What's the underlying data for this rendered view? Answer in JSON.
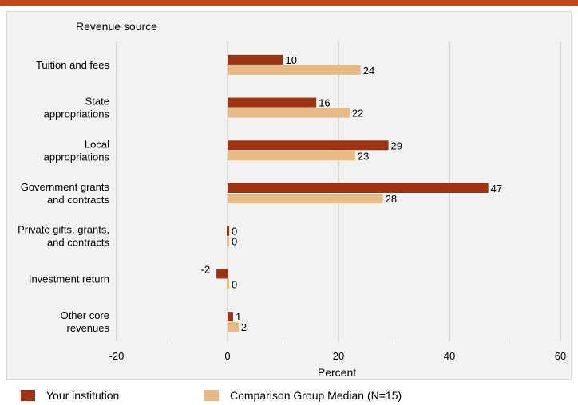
{
  "chart_data": {
    "type": "bar",
    "orientation": "horizontal",
    "categories": [
      [
        "Tuition and fees"
      ],
      [
        "State",
        "appropriations"
      ],
      [
        "Local",
        "appropriations"
      ],
      [
        "Government grants",
        "and contracts"
      ],
      [
        "Private gifts, grants,",
        "and contracts"
      ],
      [
        "Investment return"
      ],
      [
        "Other core",
        "revenues"
      ]
    ],
    "series": [
      {
        "name": "Your institution",
        "values": [
          10,
          16,
          29,
          47,
          0,
          -2,
          1
        ],
        "color": "#9e3211"
      },
      {
        "name": "Comparison Group Median (N=15)",
        "values": [
          24,
          22,
          23,
          28,
          0,
          0,
          2
        ],
        "color": "#e6bb85"
      }
    ],
    "ylabel": "Revenue source",
    "xlabel": "Percent",
    "xlim": [
      -20,
      60
    ],
    "xticks": [
      -20,
      0,
      20,
      40,
      60
    ],
    "grid": true,
    "legend_position": "bottom"
  }
}
